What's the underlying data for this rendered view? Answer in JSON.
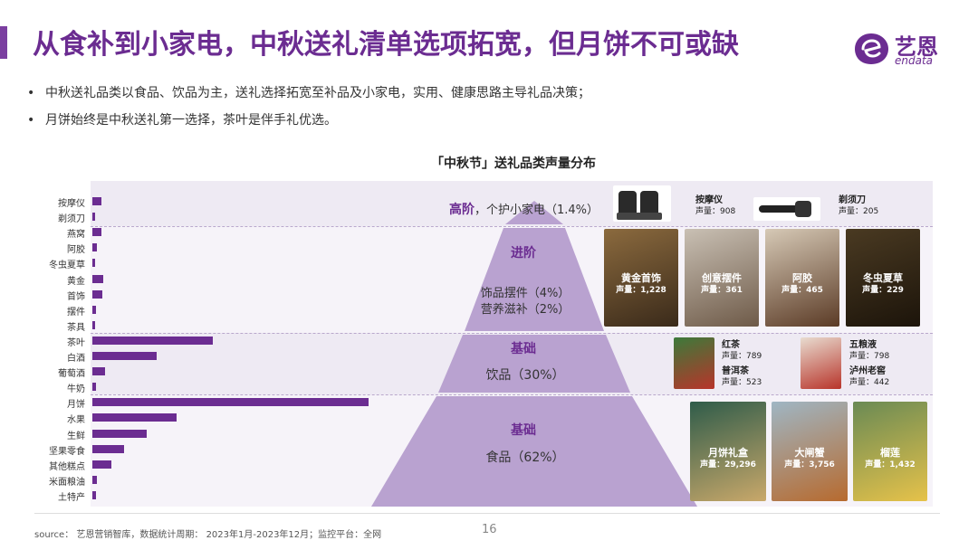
{
  "header": {
    "title": "从食补到小家电，中秋送礼清单选项拓宽，但月饼不可或缺",
    "brand_cn": "艺恩",
    "brand_en": "endata"
  },
  "bullets": [
    "中秋送礼品类以食品、饮品为主，送礼选择拓宽至补品及小家电，实用、健康思路主导礼品决策；",
    "月饼始终是中秋送礼第一选择，茶叶是伴手礼优选。"
  ],
  "bullet_marker": "•",
  "chart_data": {
    "type": "bar",
    "title": "「中秋节」送礼品类声量分布",
    "orientation": "horizontal",
    "categories": [
      "按摩仪",
      "剃须刀",
      "燕窝",
      "阿胶",
      "冬虫夏草",
      "黄金",
      "首饰",
      "摆件",
      "茶具",
      "茶叶",
      "白酒",
      "葡萄酒",
      "牛奶",
      "月饼",
      "水果",
      "生鲜",
      "坚果零食",
      "其他糕点",
      "米面粮油",
      "土特产"
    ],
    "values": [
      1.0,
      0.3,
      1.0,
      0.5,
      0.3,
      1.3,
      1.2,
      0.4,
      0.3,
      14.0,
      7.5,
      1.5,
      0.4,
      32.0,
      9.8,
      6.3,
      3.7,
      2.2,
      0.5,
      0.4
    ],
    "colors": {
      "bar": "#6B2C91",
      "band": "#EEEAF3",
      "pyramid": "#B9A2D0"
    },
    "pyramid": {
      "tier1": {
        "head": "高阶",
        "item": "，个护小家电（1.4%）"
      },
      "tier2": {
        "head": "进阶",
        "item1": "饰品摆件（4%）",
        "item2": "营养滋补（2%）"
      },
      "tier3": {
        "head": "基础",
        "item": "饮品（30%）"
      },
      "tier4": {
        "head": "基础",
        "item": "食品（62%）"
      }
    }
  },
  "products": {
    "massager": {
      "name": "按摩仪",
      "vol": "声量：908"
    },
    "shaver": {
      "name": "剃须刀",
      "vol": "声量：205"
    },
    "gold": {
      "name": "黄金首饰",
      "vol": "声量：1,228"
    },
    "ornament": {
      "name": "创意摆件",
      "vol": "声量：361"
    },
    "ejiao": {
      "name": "阿胶",
      "vol": "声量：465"
    },
    "cordyceps": {
      "name": "冬虫夏草",
      "vol": "声量：229"
    },
    "black_tea": {
      "name": "红茶",
      "vol": "声量：789"
    },
    "puer": {
      "name": "普洱茶",
      "vol": "声量：523"
    },
    "wuliangye": {
      "name": "五粮液",
      "vol": "声量：798"
    },
    "luzhou": {
      "name": "泸州老窖",
      "vol": "声量：442"
    },
    "mooncake": {
      "name": "月饼礼盒",
      "vol": "声量：29,296"
    },
    "crab": {
      "name": "大闸蟹",
      "vol": "声量：3,756"
    },
    "durian": {
      "name": "榴莲",
      "vol": "声量：1,432"
    }
  },
  "footer": {
    "source": "source： 艺恩营销智库，数据统计周期： 2023年1月-2023年12月；监控平台：全网",
    "page": "16"
  }
}
